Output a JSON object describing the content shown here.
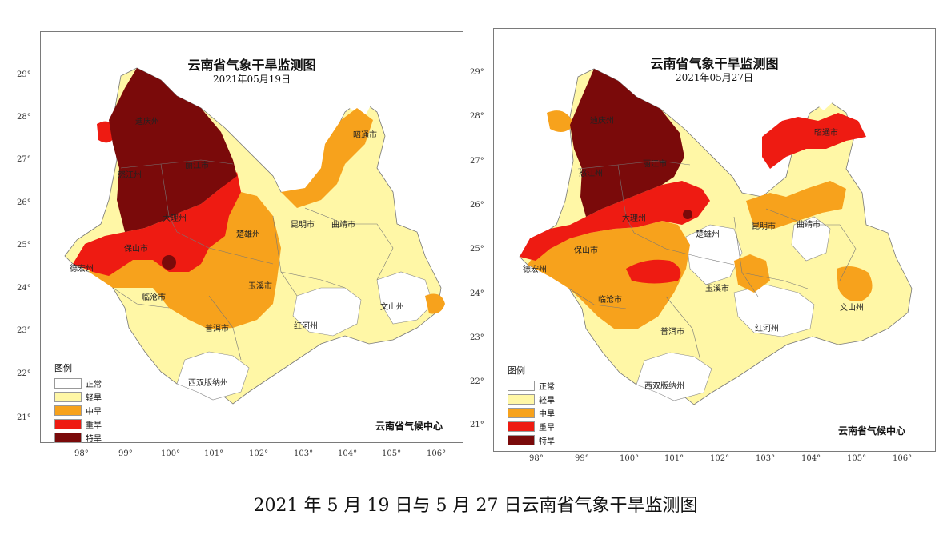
{
  "caption": "2021 年 5 月 19 日与 5 月 27 日云南省气象干旱监测图",
  "colors": {
    "normal": "#ffffff",
    "light": "#fff7a6",
    "moderate": "#f7a21c",
    "severe": "#ee1b12",
    "extreme": "#7a0a0a"
  },
  "maps": [
    {
      "title": "云南省气象干旱监测图",
      "date": "2021年05月19日",
      "lat_labels": [
        "29°",
        "28°",
        "27°",
        "26°",
        "25°",
        "24°",
        "23°",
        "22°",
        "21°"
      ],
      "lon_labels": [
        "98°",
        "99°",
        "100°",
        "101°",
        "102°",
        "103°",
        "104°",
        "105°",
        "106°"
      ],
      "cities": [
        "迪庆州",
        "怒江州",
        "丽江市",
        "大理州",
        "昭通市",
        "保山市",
        "楚雄州",
        "昆明市",
        "曲靖市",
        "德宏州",
        "临沧市",
        "玉溪市",
        "普洱市",
        "红河州",
        "文山州",
        "西双版纳州"
      ],
      "legend": {
        "title": "图例",
        "items": [
          "正常",
          "轻旱",
          "中旱",
          "重旱",
          "特旱"
        ]
      },
      "credit": "云南省气候中心"
    },
    {
      "title": "云南省气象干旱监测图",
      "date": "2021年05月27日",
      "lat_labels": [
        "29°",
        "28°",
        "27°",
        "26°",
        "25°",
        "24°",
        "23°",
        "22°",
        "21°"
      ],
      "lon_labels": [
        "98°",
        "99°",
        "100°",
        "101°",
        "102°",
        "103°",
        "104°",
        "105°",
        "106°"
      ],
      "cities": [
        "迪庆州",
        "怒江州",
        "丽江市",
        "大理州",
        "昭通市",
        "保山市",
        "楚雄州",
        "昆明市",
        "曲靖市",
        "德宏州",
        "临沧市",
        "玉溪市",
        "普洱市",
        "红河州",
        "文山州",
        "西双版纳州"
      ],
      "legend": {
        "title": "图例",
        "items": [
          "正常",
          "轻旱",
          "中旱",
          "重旱",
          "特旱"
        ]
      },
      "credit": "云南省气候中心"
    }
  ]
}
